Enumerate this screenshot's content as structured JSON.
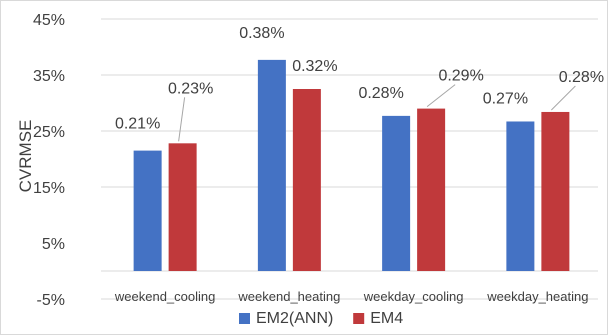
{
  "chart_data": {
    "type": "bar",
    "title": "",
    "xlabel": "",
    "ylabel": "CVRMSE",
    "categories": [
      "weekend_cooling",
      "weekend_heating",
      "weekday_cooling",
      "weekday_heating"
    ],
    "series": [
      {
        "name": "EM2(ANN)",
        "color": "#4472c4",
        "values": [
          0.215,
          0.377,
          0.277,
          0.267
        ],
        "labels": [
          "0.21%",
          "0.38%",
          "0.28%",
          "0.27%"
        ]
      },
      {
        "name": "EM4",
        "color": "#c0393b",
        "values": [
          0.228,
          0.325,
          0.29,
          0.284
        ],
        "labels": [
          "0.23%",
          "0.32%",
          "0.29%",
          "0.28%"
        ]
      }
    ],
    "y_ticks": [
      "45%",
      "35%",
      "25%",
      "15%",
      "5%",
      "-5%"
    ],
    "y_tick_values": [
      0.45,
      0.35,
      0.25,
      0.15,
      0.05,
      -0.05
    ],
    "ylim": [
      -0.05,
      0.45
    ],
    "grid": true,
    "legend_position": "bottom"
  }
}
